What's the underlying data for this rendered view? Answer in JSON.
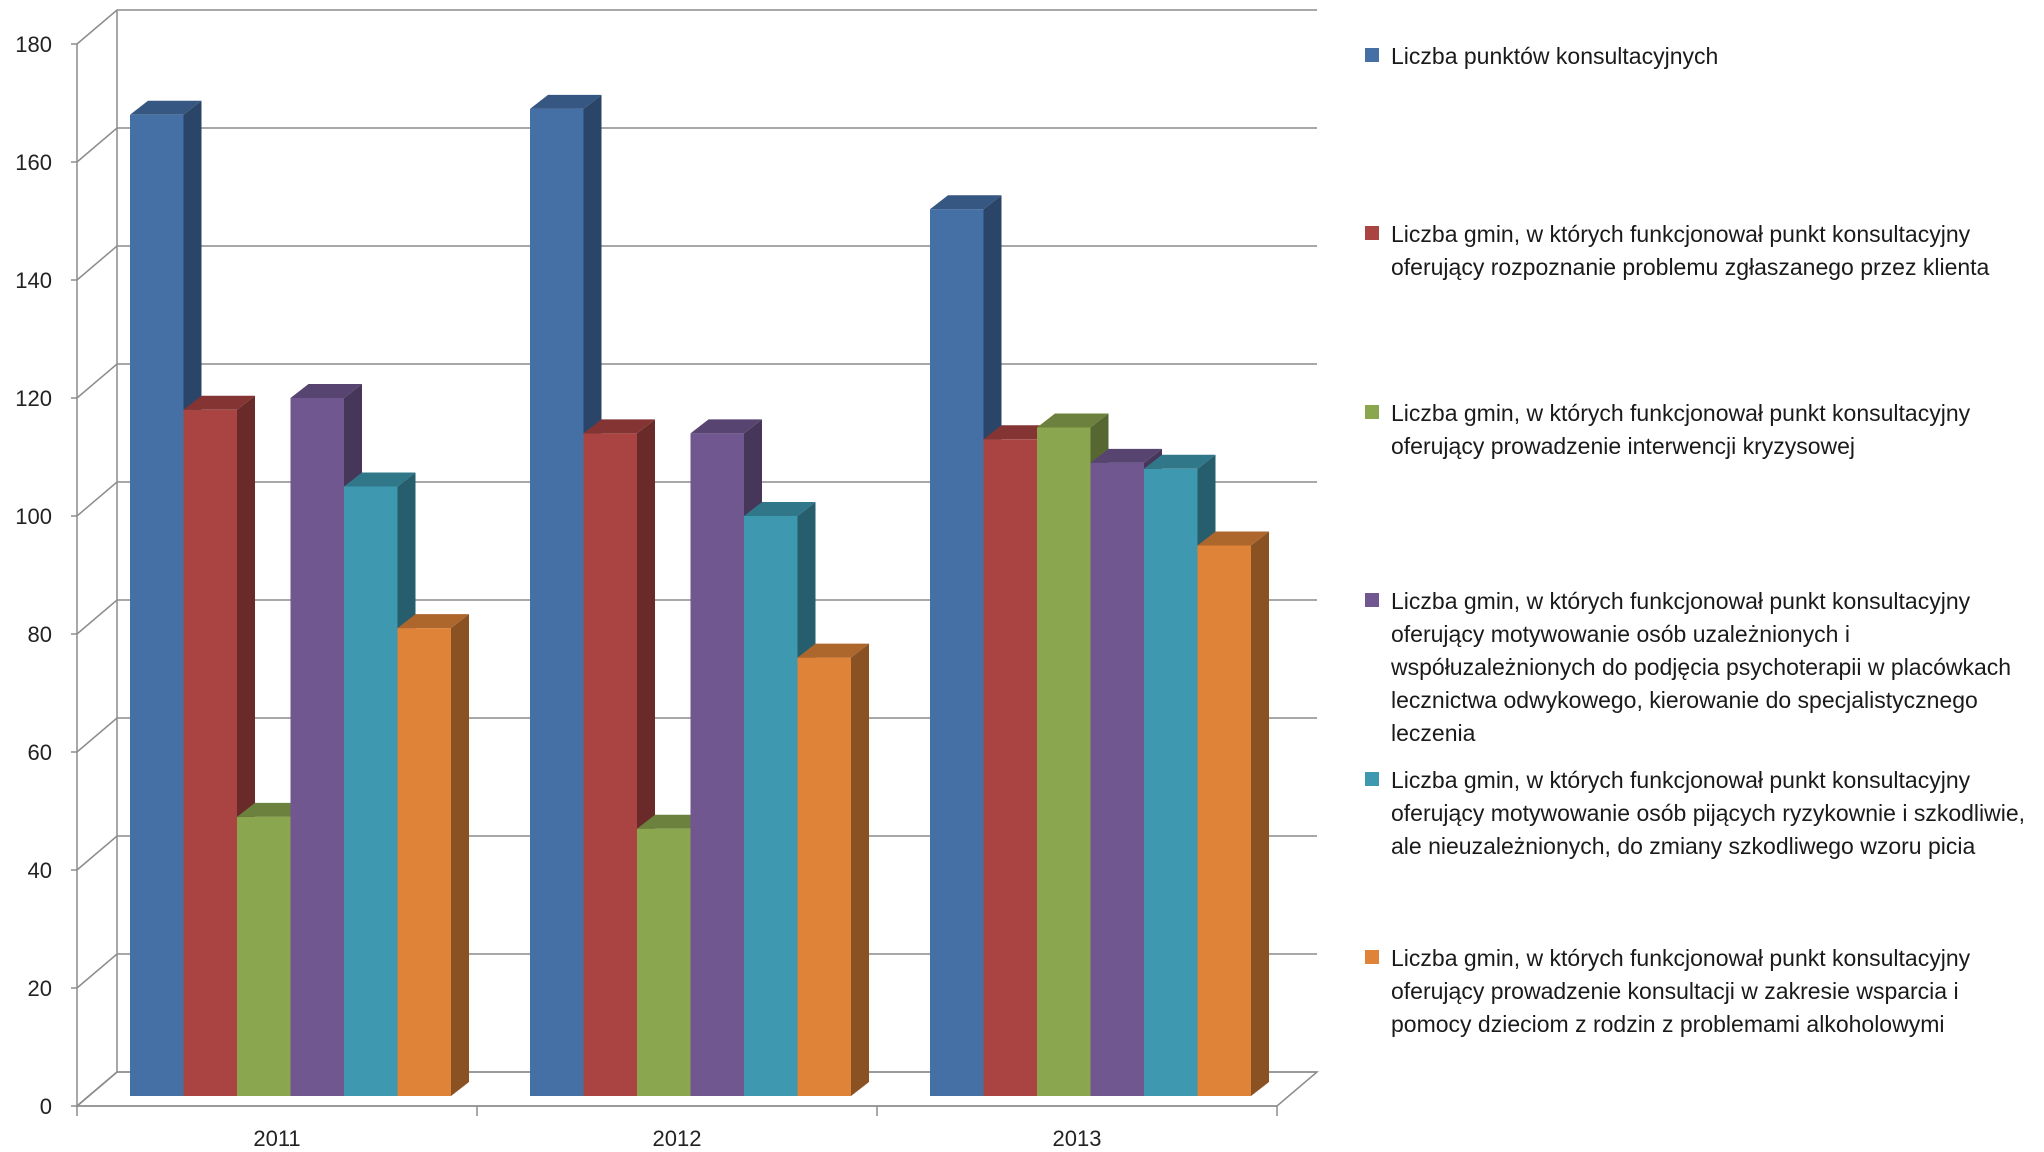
{
  "chart_data": {
    "type": "bar",
    "categories": [
      "2011",
      "2012",
      "2013"
    ],
    "ylim": [
      0,
      180
    ],
    "yticks": [
      0,
      20,
      40,
      60,
      80,
      100,
      120,
      140,
      160,
      180
    ],
    "grid": true,
    "legend_position": "right",
    "series": [
      {
        "name": "Liczba punktów konsultacyjnych",
        "color": "#4470A6",
        "values": [
          168,
          169,
          152
        ]
      },
      {
        "name": "Liczba gmin, w których funkcjonował punkt konsultacyjny oferujący rozpoznanie problemu zgłaszanego przez klienta",
        "color": "#A94442",
        "values": [
          118,
          114,
          113
        ]
      },
      {
        "name": "Liczba gmin, w których funkcjonował punkt konsultacyjny oferujący prowadzenie interwencji kryzysowej",
        "color": "#8AA64F",
        "values": [
          49,
          47,
          115
        ]
      },
      {
        "name": "Liczba gmin, w których funkcjonował punkt konsultacyjny oferujący motywowanie osób uzależnionych i współuzależnionych do podjęcia psychoterapii w placówkach lecznictwa odwykowego, kierowanie do specjalistycznego leczenia",
        "color": "#71578F",
        "values": [
          120,
          114,
          109
        ]
      },
      {
        "name": "Liczba gmin, w których funkcjonował punkt konsultacyjny oferujący motywowanie osób pijących ryzykownie i szkodliwie, ale nieuzależnionych, do zmiany szkodliwego wzoru picia",
        "color": "#3E98B0",
        "values": [
          105,
          100,
          108
        ]
      },
      {
        "name": "Liczba gmin, w których funkcjonował punkt konsultacyjny oferujący prowadzenie konsultacji w zakresie wsparcia i pomocy dzieciom z rodzin z problemami alkoholowymi",
        "color": "#DE8338",
        "values": [
          81,
          76,
          95
        ]
      }
    ]
  }
}
